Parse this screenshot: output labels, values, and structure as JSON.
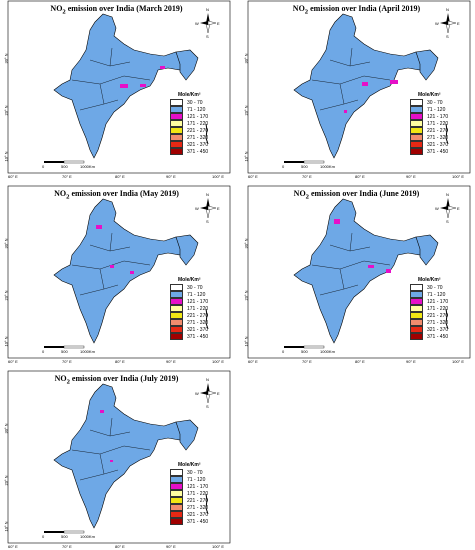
{
  "panels": [
    {
      "id": "march",
      "title_pre": "NO",
      "title_sub": "2",
      "title_post": " emission over India  (March 2019)"
    },
    {
      "id": "april",
      "title_pre": "NO",
      "title_sub": "2",
      "title_post": " emission over India  (April 2019)"
    },
    {
      "id": "may",
      "title_pre": "NO",
      "title_sub": "2",
      "title_post": " emission over India  (May 2019)"
    },
    {
      "id": "june",
      "title_pre": "NO",
      "title_sub": "2",
      "title_post": " emission over India  (June 2019)"
    },
    {
      "id": "july",
      "title_pre": "NO",
      "title_sub": "2",
      "title_post": " emission over India  (July 2019)"
    }
  ],
  "legend": {
    "title": "Mole/Km²",
    "classes": [
      {
        "label": "30 - 70",
        "color": "#ffffff"
      },
      {
        "label": "71 - 120",
        "color": "#6ea8e6"
      },
      {
        "label": "121 - 170",
        "color": "#e60fc8"
      },
      {
        "label": "171 - 220",
        "color": "#ffffa0"
      },
      {
        "label": "221 - 270",
        "color": "#f0e614"
      },
      {
        "label": "271 - 320",
        "color": "#f08c6e"
      },
      {
        "label": "321 - 370",
        "color": "#e62814"
      },
      {
        "label": "371 - 450",
        "color": "#a00000"
      }
    ]
  },
  "axes": {
    "lon_ticks": [
      "60° E",
      "70° E",
      "80° E",
      "90° E",
      "100° E"
    ],
    "lat_ticks": [
      "30° N",
      "20° N",
      "10° N"
    ]
  },
  "compass": {
    "n": "N",
    "s": "S",
    "e": "E",
    "w": "W"
  },
  "scale": {
    "zero": "0",
    "mid": "500",
    "end": "1000Km"
  }
}
